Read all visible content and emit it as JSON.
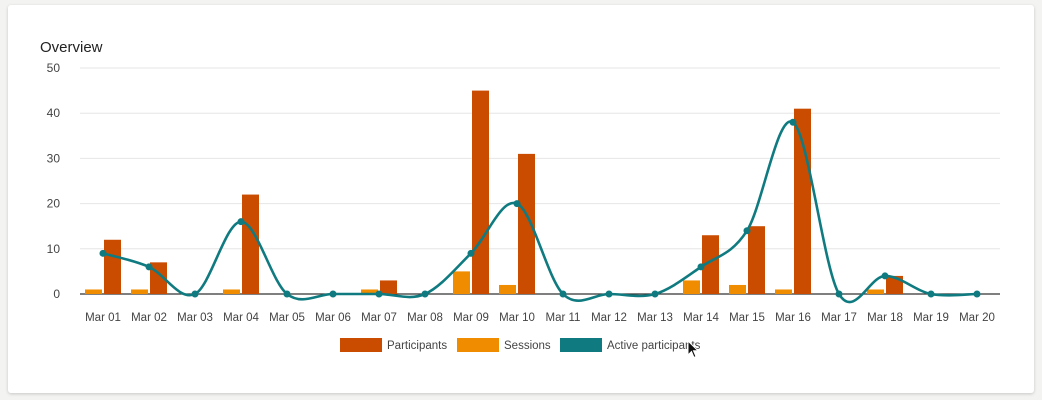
{
  "card": {
    "title": "Overview"
  },
  "chart_data": {
    "type": "bar",
    "title": "Overview",
    "xlabel": "",
    "ylabel": "",
    "ylim": [
      0,
      50
    ],
    "yticks": [
      0,
      10,
      20,
      30,
      40,
      50
    ],
    "grid": true,
    "legend_position": "bottom",
    "categories": [
      "Mar 01",
      "Mar 02",
      "Mar 03",
      "Mar 04",
      "Mar 05",
      "Mar 06",
      "Mar 07",
      "Mar 08",
      "Mar 09",
      "Mar 10",
      "Mar 11",
      "Mar 12",
      "Mar 13",
      "Mar 14",
      "Mar 15",
      "Mar 16",
      "Mar 17",
      "Mar 18",
      "Mar 19",
      "Mar 20"
    ],
    "series": [
      {
        "name": "Sessions",
        "type": "bar",
        "color": "#f08c00",
        "values": [
          1,
          1,
          0,
          1,
          0,
          0,
          1,
          0,
          5,
          2,
          0,
          0,
          0,
          3,
          2,
          1,
          0,
          1,
          0,
          0
        ]
      },
      {
        "name": "Participants",
        "type": "bar",
        "color": "#c94c00",
        "values": [
          12,
          7,
          0,
          22,
          0,
          0,
          3,
          0,
          45,
          31,
          0,
          0,
          0,
          13,
          15,
          41,
          0,
          4,
          0,
          0
        ]
      },
      {
        "name": "Active participants",
        "type": "line",
        "color": "#0f7b80",
        "values": [
          9,
          6,
          0,
          16,
          0,
          0,
          0,
          0,
          9,
          20,
          0,
          0,
          0,
          6,
          14,
          38,
          0,
          4,
          0,
          0
        ]
      }
    ],
    "legend": [
      {
        "name": "Participants",
        "color": "#c94c00"
      },
      {
        "name": "Sessions",
        "color": "#f08c00"
      },
      {
        "name": "Active participants",
        "color": "#0f7b80"
      }
    ]
  }
}
